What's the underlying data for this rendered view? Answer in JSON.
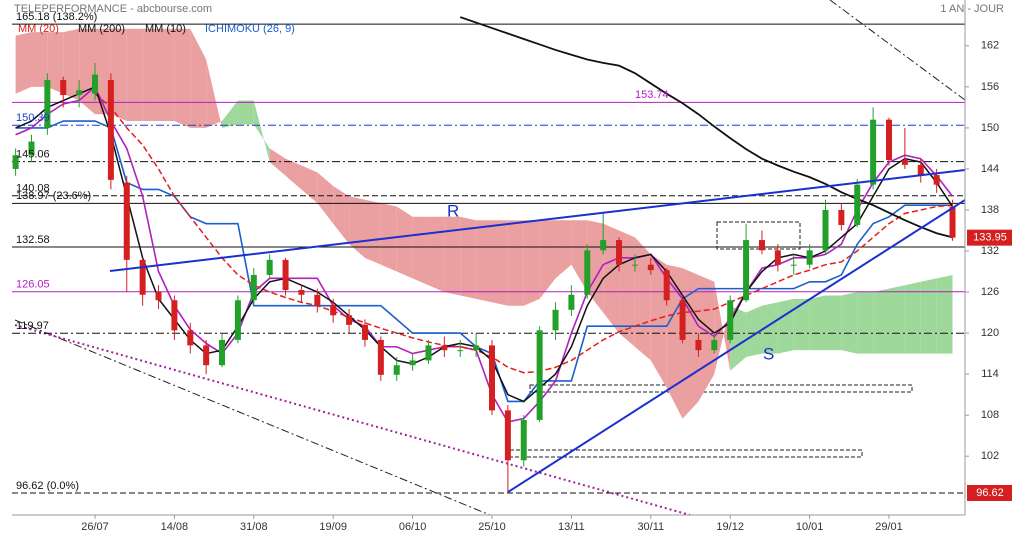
{
  "chart_data": {
    "type": "candlestick",
    "title": "TELEPERFORMANCE - abcbourse.com",
    "period": "1 AN - JOUR",
    "categories": [
      null,
      null,
      null,
      null,
      null,
      "26/07",
      null,
      null,
      null,
      null,
      "14/08",
      null,
      null,
      null,
      null,
      "31/08",
      null,
      null,
      null,
      null,
      "19/09",
      null,
      null,
      null,
      null,
      "06/10",
      null,
      null,
      null,
      null,
      "25/10",
      null,
      null,
      null,
      null,
      "13/11",
      null,
      null,
      null,
      null,
      "30/11",
      null,
      null,
      null,
      null,
      "19/12",
      null,
      null,
      null,
      null,
      "10/01",
      null,
      null,
      null,
      null,
      "29/01",
      null,
      null,
      null,
      null
    ],
    "candles": [
      [
        144,
        147,
        143,
        146
      ],
      [
        146,
        149,
        145,
        148
      ],
      [
        150,
        158,
        149,
        157
      ],
      [
        157,
        157.5,
        153,
        154.8
      ],
      [
        154.8,
        157,
        153,
        155.5
      ],
      [
        155,
        159.5,
        154,
        157.8
      ],
      [
        157,
        158,
        141,
        142.4
      ],
      [
        142,
        143,
        126,
        130.7
      ],
      [
        130.7,
        131,
        124,
        125.6
      ],
      [
        126,
        127,
        123.5,
        124.8
      ],
      [
        124.8,
        125.5,
        119,
        120.4
      ],
      [
        120.4,
        121.5,
        117,
        118.2
      ],
      [
        118.2,
        119,
        114,
        115.3
      ],
      [
        115.3,
        120,
        115,
        119
      ],
      [
        119,
        125.5,
        118.5,
        124.8
      ],
      [
        124.8,
        129.5,
        124,
        128.5
      ],
      [
        128.5,
        131.5,
        128,
        130.7
      ],
      [
        130.7,
        131,
        125.5,
        126.3
      ],
      [
        126.3,
        127,
        124.5,
        125.6
      ],
      [
        125.6,
        126.5,
        123,
        124.1
      ],
      [
        124.1,
        125,
        121.5,
        122.6
      ],
      [
        122.6,
        123.5,
        120,
        121.2
      ],
      [
        121.2,
        122,
        118,
        119
      ],
      [
        119,
        119.5,
        113,
        113.9
      ],
      [
        113.9,
        116.5,
        113,
        115.3
      ],
      [
        115.3,
        117,
        114.5,
        116
      ],
      [
        116,
        119,
        115.5,
        118.2
      ],
      [
        118.2,
        119.5,
        116.5,
        117.5
      ],
      [
        117.5,
        119,
        116.5,
        117.5
      ],
      [
        117.5,
        120,
        116.5,
        118.2
      ],
      [
        118.2,
        119,
        108,
        108.7
      ],
      [
        108.7,
        109.5,
        96.62,
        101.4
      ],
      [
        101.4,
        108,
        100.5,
        107.3
      ],
      [
        107.3,
        121,
        107,
        120.4
      ],
      [
        120.4,
        124.5,
        119,
        123.4
      ],
      [
        123.4,
        127,
        122.5,
        125.6
      ],
      [
        125.6,
        133,
        125,
        132.1
      ],
      [
        132.1,
        137.5,
        131.5,
        133.6
      ],
      [
        133.6,
        134,
        129,
        130
      ],
      [
        130,
        131.5,
        129,
        130
      ],
      [
        130,
        131,
        128.5,
        129.2
      ],
      [
        129.2,
        129.5,
        124,
        124.8
      ],
      [
        124.8,
        125.5,
        118.5,
        119
      ],
      [
        119,
        120,
        116.5,
        117.5
      ],
      [
        117.5,
        120,
        117,
        119
      ],
      [
        119,
        125.5,
        118.5,
        124.8
      ],
      [
        124.8,
        136,
        124.5,
        133.6
      ],
      [
        133.6,
        135,
        131.5,
        132.1
      ],
      [
        132.1,
        133,
        129,
        130
      ],
      [
        130,
        131.5,
        128.5,
        130
      ],
      [
        130,
        133,
        129.5,
        132.1
      ],
      [
        132.1,
        139.5,
        131.5,
        138
      ],
      [
        138,
        139,
        135,
        135.8
      ],
      [
        135.8,
        142.5,
        135.5,
        141.7
      ],
      [
        141.7,
        153,
        141,
        151.2
      ],
      [
        151.2,
        151.5,
        144.5,
        145.3
      ],
      [
        145.3,
        150,
        144,
        144.6
      ],
      [
        144.6,
        145.5,
        142,
        143.1
      ],
      [
        143.1,
        144,
        140.5,
        141.7
      ],
      [
        138.5,
        139.5,
        133.5,
        133.95
      ]
    ],
    "up_color": "#22a02a",
    "down_color": "#d42020",
    "series": [
      {
        "name": "MM (20)",
        "color": "#e0201a",
        "dash": "dashed",
        "values": [
          null,
          null,
          null,
          null,
          null,
          155,
          153,
          150,
          147.5,
          144,
          140,
          137,
          134,
          131,
          128.5,
          127,
          126,
          125.2,
          124.5,
          124,
          123.2,
          122.3,
          121.5,
          120.7,
          120,
          119.3,
          118.7,
          118.2,
          118,
          117.5,
          116.5,
          115,
          114.2,
          114.4,
          115,
          116,
          117.5,
          119,
          120.2,
          121,
          121.8,
          122.5,
          123,
          123.2,
          123.5,
          124.5,
          125.5,
          126.5,
          127.5,
          128.5,
          129.2,
          130,
          130.4,
          132,
          134,
          136,
          137.5,
          138,
          138.5,
          138.7
        ]
      },
      {
        "name": "MM (200)",
        "color": "#111111",
        "dash": "solid",
        "values": [
          null,
          null,
          null,
          null,
          null,
          null,
          null,
          null,
          null,
          null,
          null,
          null,
          null,
          null,
          null,
          null,
          null,
          null,
          null,
          null,
          null,
          null,
          null,
          null,
          null,
          null,
          null,
          null,
          166.2,
          165.4,
          164.6,
          163.8,
          163,
          162.2,
          161.4,
          160.7,
          160,
          159.5,
          159.1,
          158,
          156.5,
          155,
          153.6,
          152,
          150.2,
          148.5,
          146.9,
          145.5,
          144.5,
          143.6,
          142.8,
          141.8,
          140.6,
          139.6,
          138.7,
          137.6,
          136.5,
          135.5,
          134.6,
          134
        ]
      },
      {
        "name": "MM (10)",
        "color": "#111111",
        "dash": "solid",
        "values": [
          150,
          151,
          153,
          154,
          155,
          156,
          149,
          140,
          131,
          125,
          122,
          119,
          117,
          117.5,
          121,
          125,
          127.5,
          128,
          127,
          126,
          124.5,
          122.5,
          120.5,
          118,
          116,
          115.5,
          116.5,
          118,
          118.5,
          118,
          116,
          111,
          110,
          112,
          114,
          118,
          124,
          128,
          130,
          131,
          131.5,
          129,
          125.5,
          122,
          120,
          121.5,
          126,
          129,
          131,
          131.5,
          131,
          132,
          134,
          136,
          140,
          144,
          145.5,
          145,
          142,
          138.5
        ]
      }
    ],
    "ichimoku": {
      "name": "ICHIMOKU (26, 9)",
      "color": "#1a5fd0",
      "tenkan_color": "#b020c0",
      "bear_color": "#eaa0a0",
      "bull_color": "#9ed89a",
      "tenkan": [
        149,
        150,
        152,
        153.5,
        154,
        156,
        151,
        147,
        140,
        129,
        124,
        120.5,
        118.5,
        117,
        120,
        126,
        128,
        128,
        128,
        128,
        124,
        122,
        121,
        118,
        118,
        117,
        117.5,
        118,
        118,
        117.5,
        111,
        107,
        107.5,
        110,
        113,
        120,
        126,
        130,
        131,
        131,
        131.5,
        128,
        125,
        121,
        119.5,
        122,
        126,
        129.5,
        130,
        131,
        131,
        131.5,
        133,
        138,
        142,
        145,
        146,
        145.5,
        143,
        140
      ],
      "kijun": [
        150,
        150,
        150,
        151,
        151,
        151,
        150,
        142,
        141,
        141,
        140,
        137,
        136,
        136,
        136,
        124,
        124,
        124,
        124,
        124,
        124,
        124,
        124,
        124,
        122,
        120,
        120,
        120,
        120,
        118,
        117,
        110,
        110,
        113,
        113,
        113,
        121,
        121,
        121,
        121,
        121,
        121,
        125,
        126.5,
        126.5,
        126.5,
        126.5,
        126.5,
        126.5,
        126.5,
        127.5,
        127.5,
        128.5,
        133,
        136,
        137,
        138.7,
        138.7,
        138.7,
        138.7
      ],
      "span_a": [
        155,
        156,
        156,
        155,
        154,
        152,
        152,
        151,
        151,
        151,
        151,
        150,
        150,
        151,
        154,
        154,
        145,
        143,
        141,
        139,
        136,
        133,
        131,
        130,
        129,
        128,
        127,
        126,
        125.5,
        125,
        124.5,
        124,
        124,
        125,
        128,
        130,
        126,
        123,
        120,
        118,
        116,
        112,
        107.5,
        110,
        114,
        124,
        123,
        124,
        124.5,
        125,
        125,
        125.5,
        125.5,
        126,
        126,
        126.5,
        127,
        127.5,
        128,
        128.5
      ],
      "span_b": [
        163.5,
        164,
        164,
        164,
        164.5,
        164.5,
        164.5,
        164.5,
        164.5,
        164.5,
        164.5,
        164.5,
        160,
        150,
        150.5,
        150.5,
        147,
        145.5,
        144.5,
        143.5,
        141.5,
        140,
        139.5,
        139,
        138.5,
        137,
        137,
        137,
        137,
        136.5,
        136.5,
        136.5,
        136.5,
        136.5,
        136.5,
        136.5,
        136.5,
        136,
        135,
        134,
        131.5,
        130,
        129.5,
        128.5,
        127.5,
        114.5,
        116.5,
        117,
        117,
        117.5,
        117.5,
        117.5,
        117.5,
        117,
        117,
        117,
        117,
        117,
        117,
        117
      ]
    },
    "levels": [
      {
        "value": 165.18,
        "label": "165.18 (138.2%)",
        "color": "#111111",
        "dash": "solid"
      },
      {
        "value": 153.74,
        "label": 153.74,
        "color": "#b020c0",
        "dash": "solid"
      },
      {
        "value": 150.39,
        "label": 150.39,
        "color": "#1a3fd0",
        "dash": "dashdot"
      },
      {
        "value": 145.06,
        "label": 145.06,
        "color": "#111111",
        "dash": "dashdot"
      },
      {
        "value": 140.08,
        "label": 140.08,
        "color": "#111111",
        "dash": "dashed"
      },
      {
        "value": 138.97,
        "label": "138.97 (23.6%)",
        "color": "#111111",
        "dash": "solid"
      },
      {
        "value": 132.58,
        "label": 132.58,
        "color": "#111111",
        "dash": "solid"
      },
      {
        "value": 126.05,
        "label": 126.05,
        "color": "#b020c0",
        "dash": "solid"
      },
      {
        "value": 119.97,
        "label": 119.97,
        "color": "#111111",
        "dash": "dashdot"
      },
      {
        "value": 96.62,
        "label": "96.62 (0.0%)",
        "color": "#111111",
        "dash": "dashed"
      }
    ],
    "annotations": [
      "R",
      "S"
    ],
    "ylim": [
      93.4,
      168.7
    ],
    "yticks": [
      102,
      108,
      114,
      120,
      126,
      132,
      138,
      144,
      150,
      156,
      162
    ],
    "tag_color": "#d42020"
  }
}
